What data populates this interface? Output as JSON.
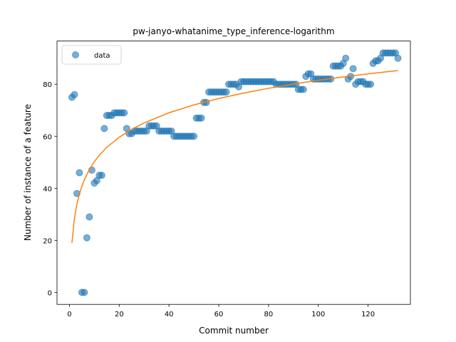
{
  "chart_data": {
    "type": "scatter",
    "title": "pw-janyo-whatanime_type_inference-logarithm",
    "xlabel": "Commit number",
    "ylabel": "Number of instance of a feature",
    "xlim": [
      -5,
      137
    ],
    "ylim": [
      -4.6,
      96.6
    ],
    "xticks": [
      0,
      20,
      40,
      60,
      80,
      100,
      120
    ],
    "yticks": [
      0,
      20,
      40,
      60,
      80
    ],
    "grid": false,
    "legend": {
      "placement": "top-left",
      "entries": [
        "data"
      ]
    },
    "colors": {
      "data": "#1f77b4",
      "fit": "#ff7f0e"
    },
    "series": [
      {
        "name": "data",
        "kind": "scatter",
        "x": [
          1,
          2,
          3,
          4,
          5,
          6,
          7,
          8,
          9,
          10,
          11,
          12,
          13,
          14,
          15,
          16,
          17,
          18,
          19,
          20,
          21,
          22,
          23,
          24,
          25,
          26,
          27,
          28,
          29,
          30,
          31,
          32,
          33,
          34,
          35,
          36,
          37,
          38,
          39,
          40,
          41,
          42,
          43,
          44,
          45,
          46,
          47,
          48,
          49,
          50,
          51,
          52,
          53,
          54,
          55,
          56,
          57,
          58,
          59,
          60,
          61,
          62,
          63,
          64,
          65,
          66,
          67,
          68,
          69,
          70,
          71,
          72,
          73,
          74,
          75,
          76,
          77,
          78,
          79,
          80,
          81,
          82,
          83,
          84,
          85,
          86,
          87,
          88,
          89,
          90,
          91,
          92,
          93,
          94,
          95,
          96,
          97,
          98,
          99,
          100,
          101,
          102,
          103,
          104,
          105,
          106,
          107,
          108,
          109,
          110,
          111,
          112,
          113,
          114,
          115,
          116,
          117,
          118,
          119,
          120,
          121,
          122,
          123,
          124,
          125,
          126,
          127,
          128,
          129,
          130,
          131,
          132
        ],
        "y": [
          75,
          76,
          38,
          46,
          0,
          0,
          21,
          29,
          47,
          42,
          43,
          45,
          45,
          63,
          68,
          68,
          68,
          69,
          69,
          69,
          69,
          69,
          63,
          61,
          61,
          62,
          62,
          62,
          62,
          62,
          62,
          64,
          64,
          64,
          64,
          62,
          62,
          62,
          62,
          62,
          62,
          60,
          60,
          60,
          60,
          60,
          60,
          60,
          60,
          60,
          67,
          67,
          67,
          73,
          73,
          77,
          77,
          77,
          77,
          77,
          77,
          77,
          77,
          80,
          80,
          80,
          80,
          79,
          81,
          81,
          81,
          81,
          81,
          81,
          81,
          81,
          81,
          81,
          81,
          81,
          81,
          81,
          80,
          80,
          80,
          80,
          80,
          80,
          80,
          80,
          80,
          78,
          78,
          78,
          83,
          84,
          84,
          82,
          82,
          82,
          82,
          82,
          82,
          82,
          82,
          87,
          87,
          87,
          87,
          88,
          90,
          82,
          83,
          86,
          80,
          81,
          81,
          81,
          80,
          80,
          80,
          88,
          89,
          89,
          90,
          92,
          92,
          92,
          92,
          92,
          92,
          90
        ]
      },
      {
        "name": "",
        "kind": "line",
        "x": [
          1,
          2,
          3,
          4,
          5,
          6,
          8,
          10,
          12,
          15,
          20,
          25,
          30,
          40,
          50,
          60,
          70,
          80,
          90,
          100,
          110,
          120,
          132
        ],
        "y": [
          20.9,
          31.2,
          37.2,
          41.5,
          44.8,
          47.5,
          51.8,
          55.1,
          57.8,
          61.1,
          65.4,
          68.7,
          71.4,
          75.7,
          79.0,
          81.7,
          84.0,
          86.0,
          87.8,
          89.4,
          90.8,
          92.1,
          93.5
        ]
      }
    ]
  }
}
